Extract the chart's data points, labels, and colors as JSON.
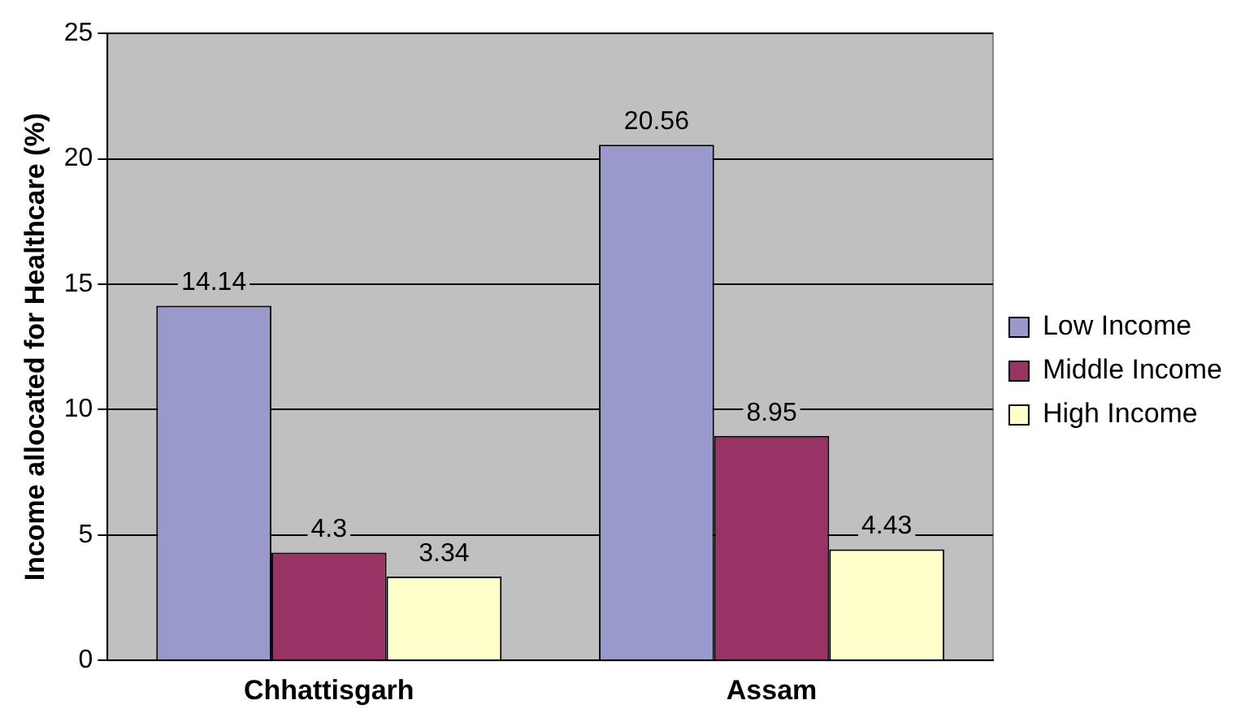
{
  "chart_data": {
    "type": "bar",
    "ylabel": "Income allocated for Healthcare (%)",
    "categories": [
      "Chhattisgarh",
      "Assam"
    ],
    "series": [
      {
        "name": "Low Income",
        "color": "#9999cc",
        "values": [
          14.14,
          20.56
        ]
      },
      {
        "name": "Middle Income",
        "color": "#993366",
        "values": [
          4.3,
          8.95
        ]
      },
      {
        "name": "High Income",
        "color": "#ffffcc",
        "values": [
          3.34,
          4.43
        ]
      }
    ],
    "ylim": [
      0,
      25
    ],
    "yticks": [
      0,
      5,
      10,
      15,
      20,
      25
    ],
    "grid": "y",
    "legend": "right",
    "data_labels": true
  }
}
